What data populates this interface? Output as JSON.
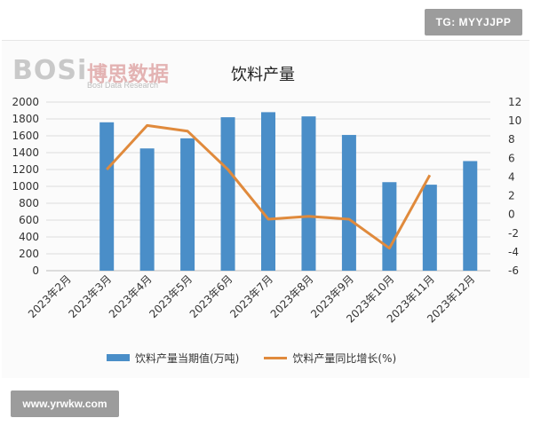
{
  "watermarks": {
    "tag": "TG: MYYJJPP",
    "site": "www.yrwkw.com"
  },
  "logo": {
    "brand": "BOSi",
    "cn_name": "博思数据",
    "en_name": "Bosi Data Research"
  },
  "colors": {
    "bar": "#4a8ec8",
    "line": "#e08a3c",
    "grid": "#dcdcdc"
  },
  "chart_data": {
    "type": "bar",
    "title": "饮料产量",
    "categories": [
      "2023年2月",
      "2023年3月",
      "2023年4月",
      "2023年5月",
      "2023年6月",
      "2023年7月",
      "2023年8月",
      "2023年9月",
      "2023年10月",
      "2023年11月",
      "2023年12月"
    ],
    "series": [
      {
        "name": "饮料产量当期值(万吨)",
        "type": "bar",
        "axis": "left",
        "values": [
          null,
          1760,
          1450,
          1570,
          1820,
          1880,
          1830,
          1610,
          1050,
          1020,
          1300
        ]
      },
      {
        "name": "饮料产量同比增长(%)",
        "type": "line",
        "axis": "right",
        "values": [
          null,
          4.8,
          9.5,
          8.9,
          4.8,
          -0.5,
          -0.2,
          -0.5,
          -3.6,
          4.2,
          null
        ]
      }
    ],
    "y_left": {
      "min": 0,
      "max": 2000,
      "ticks": [
        0,
        200,
        400,
        600,
        800,
        1000,
        1200,
        1400,
        1600,
        1800,
        2000
      ]
    },
    "y_right": {
      "min": -6,
      "max": 12,
      "ticks": [
        -6,
        -4,
        -2,
        0,
        2,
        4,
        6,
        8,
        10,
        12
      ]
    },
    "grid": true,
    "legend_position": "bottom"
  }
}
